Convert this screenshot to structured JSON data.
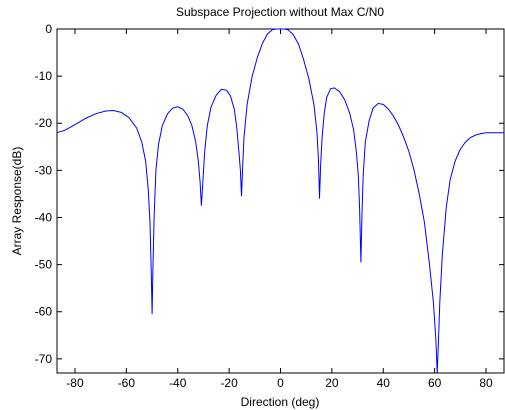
{
  "chart_data": {
    "type": "line",
    "title": "Subspace Projection without Max C/N0",
    "xlabel": "Direction (deg)",
    "ylabel": "Array Response(dB)",
    "xlim": [
      -87,
      87
    ],
    "ylim": [
      -73,
      0
    ],
    "xticks": [
      -80,
      -60,
      -40,
      -20,
      0,
      20,
      40,
      60,
      80
    ],
    "yticks": [
      0,
      -10,
      -20,
      -30,
      -40,
      -50,
      -60,
      -70
    ],
    "grid": false,
    "series": [
      {
        "color": "#0000ff",
        "x": [
          -87,
          -84,
          -80,
          -76,
          -72,
          -68,
          -65,
          -62,
          -59,
          -56,
          -54,
          -52.5,
          -51.5,
          -50.8,
          -50.3,
          -50,
          -49.7,
          -49.2,
          -48.5,
          -47.5,
          -46,
          -44,
          -42,
          -40,
          -38,
          -36,
          -34.5,
          -33,
          -32,
          -31.3,
          -30.8,
          -30.3,
          -29.5,
          -28.5,
          -27,
          -25,
          -23,
          -21,
          -19.5,
          -18,
          -17,
          -16.2,
          -15.6,
          -15.2,
          -14.8,
          -14.2,
          -13,
          -11,
          -9,
          -7,
          -5,
          -3,
          -1.5,
          0,
          1.5,
          3,
          5,
          7,
          9,
          11,
          13,
          14.2,
          14.8,
          15.2,
          15.6,
          16.2,
          17,
          18,
          19.5,
          21,
          23,
          25,
          27,
          28.5,
          29.5,
          30.3,
          30.8,
          31.3,
          31.7,
          32.2,
          33,
          34.5,
          36,
          38,
          40,
          42,
          44,
          46,
          48,
          50,
          52,
          54,
          56,
          58,
          59.5,
          60.5,
          61,
          61.5,
          62,
          63,
          64.5,
          66,
          68,
          70,
          72,
          74,
          76,
          78,
          80,
          82,
          84,
          86,
          87
        ],
        "y": [
          -22,
          -21.5,
          -20.3,
          -19,
          -18,
          -17.4,
          -17.3,
          -17.7,
          -18.8,
          -21,
          -24,
          -28,
          -34,
          -41,
          -52,
          -60.5,
          -52,
          -40,
          -30,
          -24.5,
          -20.5,
          -18,
          -16.8,
          -16.5,
          -17,
          -18.5,
          -20.5,
          -24,
          -28,
          -32.5,
          -37.5,
          -33,
          -26,
          -20.5,
          -16.5,
          -14,
          -12.8,
          -13,
          -14.2,
          -17,
          -21,
          -26,
          -30,
          -35.5,
          -30,
          -23,
          -16,
          -10,
          -6,
          -3,
          -1,
          -0.1,
          0,
          0,
          0,
          -0.2,
          -1.2,
          -3.2,
          -6.5,
          -10.5,
          -16,
          -22,
          -28,
          -36,
          -29,
          -23,
          -18,
          -14.5,
          -12.7,
          -12.5,
          -13.3,
          -15,
          -18,
          -21.5,
          -26,
          -31,
          -38,
          -49.5,
          -40,
          -31,
          -24,
          -19.5,
          -16.8,
          -15.8,
          -16,
          -17,
          -18.5,
          -20.5,
          -23,
          -26,
          -30,
          -35,
          -41,
          -50,
          -58,
          -66,
          -73,
          -66,
          -58,
          -48,
          -38,
          -32,
          -28,
          -25.5,
          -24,
          -23,
          -22.5,
          -22.2,
          -22,
          -22,
          -22,
          -22,
          -22
        ]
      }
    ]
  }
}
